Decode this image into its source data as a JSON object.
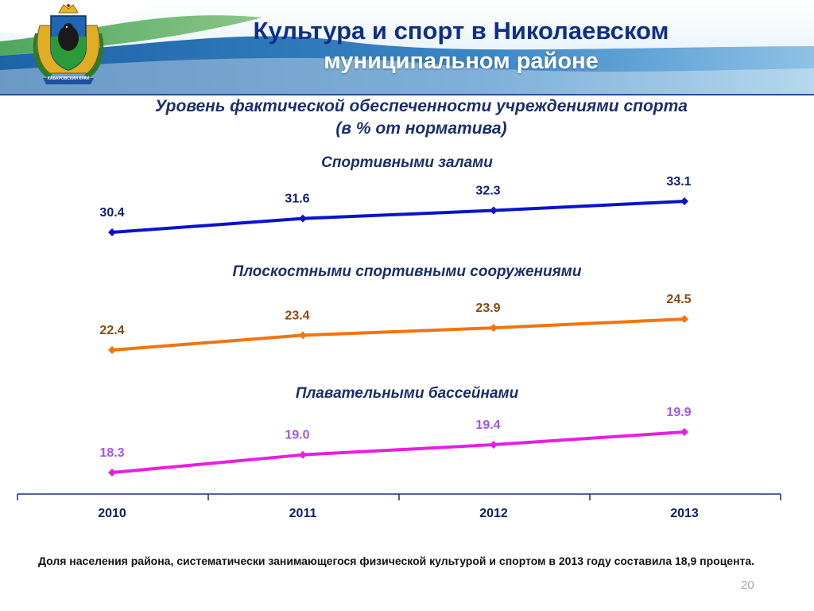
{
  "title_line1": "Культура и спорт в Николаевском",
  "title_line2": "муниципальном районе",
  "subtitle_line1": "Уровень фактической обеспеченности учреждениями спорта",
  "subtitle_line2": "(в % от норматива)",
  "emblem_caption": "ХАБАРОВСКИЙ КРАЙ",
  "footnote": "Доля населения района, систематически занимающегося физической культурой и спортом в 2013 году составила 18,9 процента.",
  "page_number": "20",
  "chart_data": {
    "type": "line",
    "categories": [
      "2010",
      "2011",
      "2012",
      "2013"
    ],
    "series": [
      {
        "name": "Спортивными залами",
        "values": [
          30.4,
          31.6,
          32.3,
          33.1
        ],
        "labels": [
          "30.4",
          "31.6",
          "32.3",
          "33.1"
        ],
        "color": "#0a14c8",
        "label_color": "#0f1e78"
      },
      {
        "name": "Плоскостными спортивными сооружениями",
        "values": [
          22.4,
          23.4,
          23.9,
          24.5
        ],
        "labels": [
          "22.4",
          "23.4",
          "23.9",
          "24.5"
        ],
        "color": "#f2740f",
        "label_color": "#8a4a12"
      },
      {
        "name": "Плавательными бассейнами",
        "values": [
          18.3,
          19.0,
          19.4,
          19.9
        ],
        "labels": [
          "18.3",
          "19.0",
          "19.4",
          "19.9"
        ],
        "color": "#e81ee0",
        "label_color": "#a356e0"
      }
    ],
    "grid": false,
    "legend": "none"
  }
}
